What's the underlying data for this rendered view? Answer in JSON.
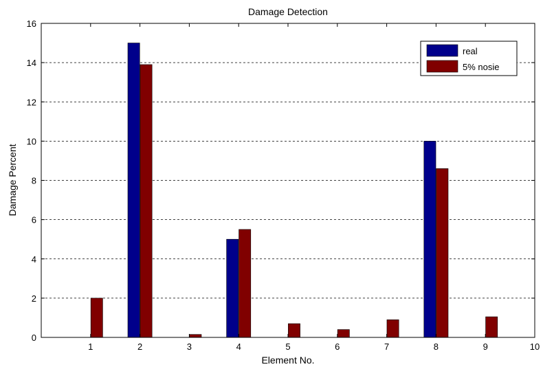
{
  "chart_data": {
    "type": "bar",
    "title": "Damage Detection",
    "xlabel": "Element No.",
    "ylabel": "Damage Percent",
    "categories": [
      "1",
      "2",
      "3",
      "4",
      "5",
      "6",
      "7",
      "8",
      "9"
    ],
    "x_ticks": [
      "1",
      "2",
      "3",
      "4",
      "5",
      "6",
      "7",
      "8",
      "9",
      "10"
    ],
    "y_ticks": [
      "0",
      "2",
      "4",
      "6",
      "8",
      "10",
      "12",
      "14",
      "16"
    ],
    "xlim": [
      0,
      10
    ],
    "ylim": [
      0,
      16
    ],
    "grid": "horizontal dashed",
    "legend_position": "top-right",
    "series": [
      {
        "name": "real",
        "color": "#00008b",
        "values": [
          0,
          15,
          0,
          5,
          0,
          0,
          0,
          10,
          0
        ]
      },
      {
        "name": "5% nosie",
        "color": "#800000",
        "values": [
          2.0,
          13.9,
          0.15,
          5.5,
          0.7,
          0.4,
          0.9,
          8.6,
          1.05
        ]
      }
    ]
  }
}
